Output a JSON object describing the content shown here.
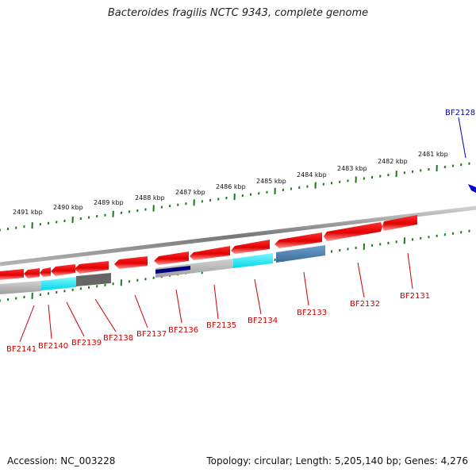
{
  "title": "Bacteroides fragilis NCTC 9343, complete genome",
  "footer": {
    "accession": "Accession: NC_003228",
    "summary": "Topology: circular; Length: 5,205,140 bp; Genes: 4,276"
  },
  "scale_labels": [
    "2481 kbp",
    "2482 kbp",
    "2483 kbp",
    "2484 kbp",
    "2485 kbp",
    "2486 kbp",
    "2487 kbp",
    "2488 kbp",
    "2489 kbp",
    "2490 kbp",
    "2491 kbp"
  ],
  "gene_labels": [
    "BF2128",
    "BF2131",
    "BF2132",
    "BF2133",
    "BF2134",
    "BF2135",
    "BF2136",
    "BF2137",
    "BF2138",
    "BF2139",
    "BF2140",
    "BF2141"
  ],
  "colors": {
    "gene_forward": "#e00000",
    "backbone": "#888888",
    "scale_ticks": "#1a7a1a",
    "label_red": "#cc0000",
    "label_blue": "#0000aa",
    "cyan_feature": "#00e5ee",
    "steelblue_feature": "#4a7fb0",
    "navy_feature": "#000080",
    "grey_feature": "#bbbbbb",
    "dark_grey_feature": "#666666"
  }
}
